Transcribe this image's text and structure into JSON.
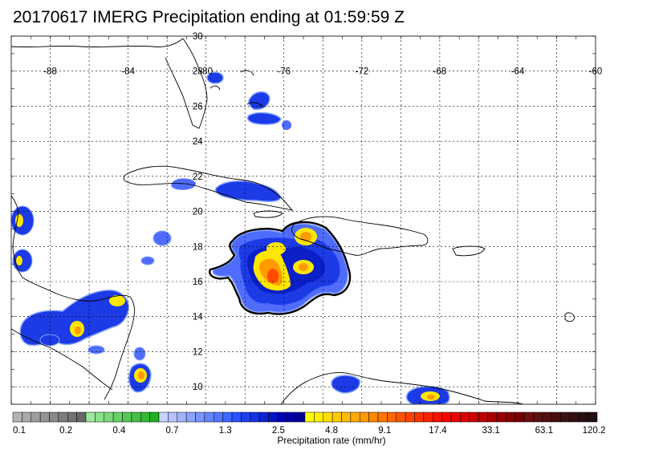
{
  "title": "20170617 IMERG Precipitation ending at 01:59:59 Z",
  "lon_labels": [
    "-88",
    "-84",
    "-80",
    "-76",
    "-72",
    "-68",
    "-64",
    "-60"
  ],
  "lat_labels": [
    "30",
    "28",
    "26",
    "24",
    "22",
    "20",
    "18",
    "16",
    "14",
    "12",
    "10"
  ],
  "colorbar": {
    "unit_label": "Precipitation rate (mm/hr)",
    "tick_labels": [
      "0.1",
      "0.2",
      "0.4",
      "0.7",
      "1.3",
      "2.5",
      "4.8",
      "9.1",
      "17.4",
      "33.1",
      "63.1",
      "120.2"
    ],
    "colors": [
      "#b4b4b4",
      "#a9a9a9",
      "#9e9e9e",
      "#939393",
      "#888888",
      "#7d7d7d",
      "#727272",
      "#676767",
      "#9ee89e",
      "#8ce08c",
      "#7ad87a",
      "#68d068",
      "#56c856",
      "#44c044",
      "#32b832",
      "#20b020",
      "#c8d2ff",
      "#b4c3ff",
      "#a0b4ff",
      "#8ca5ff",
      "#7896ff",
      "#6487ff",
      "#5078ff",
      "#3c69ff",
      "#2850ff",
      "#1e41f0",
      "#1432e1",
      "#0a23d2",
      "#0014c3",
      "#0000b4",
      "#0000a5",
      "#000096",
      "#ffff00",
      "#ffee00",
      "#ffdd00",
      "#ffcc00",
      "#ffbb00",
      "#ffaa00",
      "#ff9900",
      "#ff8800",
      "#ff7700",
      "#ff6600",
      "#ff5500",
      "#ff4400",
      "#ff3300",
      "#ff2200",
      "#ff1100",
      "#ff0000",
      "#ee0000",
      "#dd0000",
      "#cc0000",
      "#bb0000",
      "#aa0000",
      "#990000",
      "#880000",
      "#770000",
      "#6a1010",
      "#5e1010",
      "#521010",
      "#461010",
      "#3a1010",
      "#301010",
      "#281010",
      "#201010"
    ]
  },
  "map": {
    "domain": "lon -90 to -60, lat 9 to 30",
    "contour_color": "#000000",
    "colors": {
      "blue_outer": "#4f6cff",
      "blue_mid": "#2142ea",
      "blue_dark": "#0a1fc5",
      "cyan_edge": "#88a7ff",
      "yellow": "#ffe600",
      "orange": "#ff9a00",
      "red": "#ff4b00"
    }
  }
}
